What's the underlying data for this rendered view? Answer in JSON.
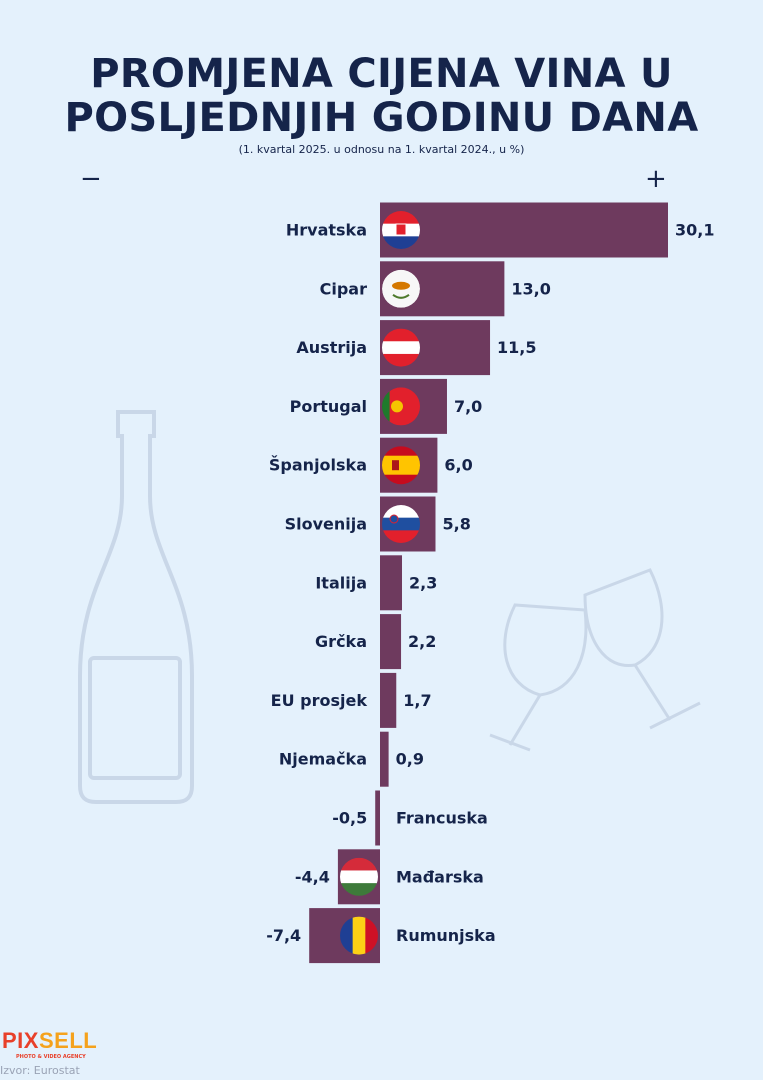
{
  "title_line1": "PROMJENA CIJENA VINA U",
  "title_line2": "POSLJEDNJIH GODINU DANA",
  "subtitle": "(1. kvartal 2025. u odnosu na 1. kvartal 2024., u %)",
  "minus_sign": "−",
  "plus_sign": "+",
  "source": "Izvor: Eurostat",
  "logo_text": "PIXSELL",
  "logo_tagline": "PHOTO & VIDEO AGENCY",
  "colors": {
    "bar": "#6e3a5e",
    "text": "#15244a",
    "background": "#e4f1fc"
  },
  "chart_data": {
    "type": "bar",
    "orientation": "horizontal",
    "categories": [
      "Hrvatska",
      "Cipar",
      "Austrija",
      "Portugal",
      "Španjolska",
      "Slovenija",
      "Italija",
      "Grčka",
      "EU prosjek",
      "Njemačka",
      "Francuska",
      "Mađarska",
      "Rumunjska"
    ],
    "values": [
      30.1,
      13.0,
      11.5,
      7.0,
      6.0,
      5.8,
      2.3,
      2.2,
      1.7,
      0.9,
      -0.5,
      -4.4,
      -7.4
    ],
    "labels": [
      "30,1",
      "13,0",
      "11,5",
      "7,0",
      "6,0",
      "5,8",
      "2,3",
      "2,2",
      "1,7",
      "0,9",
      "-0,5",
      "-4,4",
      "-7,4"
    ],
    "flags": [
      "croatia-flag",
      "cyprus-flag",
      "austria-flag",
      "portugal-flag",
      "spain-flag",
      "slovenia-flag",
      null,
      null,
      null,
      null,
      null,
      "hungary-flag",
      "romania-flag"
    ],
    "xlim": [
      -7.4,
      30.1
    ]
  }
}
